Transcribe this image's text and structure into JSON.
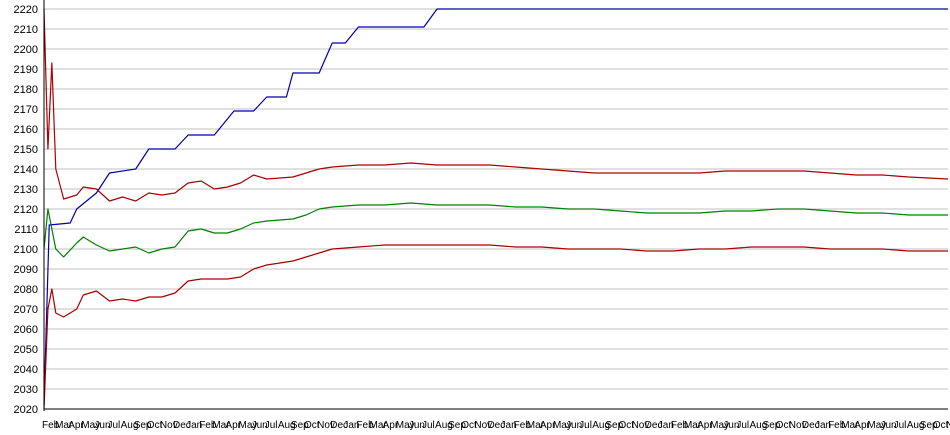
{
  "chart_data": {
    "type": "line",
    "title": "",
    "xlabel": "",
    "ylabel": "",
    "ylim": [
      2020,
      2220
    ],
    "y_ticks": [
      2020,
      2030,
      2040,
      2050,
      2060,
      2070,
      2080,
      2090,
      2100,
      2110,
      2120,
      2130,
      2140,
      2150,
      2160,
      2170,
      2180,
      2190,
      2200,
      2210,
      2220
    ],
    "x_tick_labels": [
      "Feb",
      "Mar",
      "Apr",
      "May",
      "Jun",
      "Jul",
      "Aug",
      "Sep",
      "Oct",
      "Nov",
      "Dec",
      "Jan",
      "Feb",
      "Mar",
      "Apr",
      "May",
      "Jun",
      "Jul",
      "Aug",
      "Sep",
      "Oct",
      "Nov",
      "Dec",
      "Jan",
      "Feb",
      "Mar",
      "Apr",
      "May",
      "Jun",
      "Jul",
      "Aug",
      "Sep",
      "Oct",
      "Nov",
      "Dec",
      "Jan",
      "Feb",
      "Mar",
      "Apr",
      "May",
      "Jun",
      "Jul",
      "Aug",
      "Sep",
      "Oct",
      "Nov",
      "Dec",
      "Jan",
      "Feb",
      "Mar",
      "Apr",
      "May",
      "Jun",
      "Jul",
      "Aug",
      "Sep",
      "Oct",
      "Nov",
      "Dec",
      "Jan",
      "Feb",
      "Mar",
      "Apr",
      "May",
      "Jun",
      "Jul",
      "Aug",
      "Sep",
      "Oct",
      "Nov"
    ],
    "x_range_months": [
      0,
      69
    ],
    "grid": true,
    "legend": "none",
    "series": [
      {
        "color": "#0000aa",
        "points": [
          [
            0,
            2022
          ],
          [
            0.4,
            2112
          ],
          [
            2,
            2113
          ],
          [
            2.5,
            2120
          ],
          [
            4,
            2128
          ],
          [
            5,
            2138
          ],
          [
            7,
            2140
          ],
          [
            8,
            2150
          ],
          [
            10,
            2150
          ],
          [
            11,
            2157
          ],
          [
            13,
            2157
          ],
          [
            14.5,
            2169
          ],
          [
            16,
            2169
          ],
          [
            17,
            2176
          ],
          [
            18.5,
            2176
          ],
          [
            19,
            2188
          ],
          [
            21,
            2188
          ],
          [
            22,
            2203
          ],
          [
            23,
            2203
          ],
          [
            24,
            2211
          ],
          [
            29,
            2211
          ],
          [
            30,
            2220
          ],
          [
            69,
            2220
          ]
        ]
      },
      {
        "color": "#aa0000",
        "points": [
          [
            0,
            2220
          ],
          [
            0.3,
            2150
          ],
          [
            0.6,
            2193
          ],
          [
            0.9,
            2140
          ],
          [
            1.5,
            2125
          ],
          [
            2.5,
            2127
          ],
          [
            3,
            2131
          ],
          [
            4,
            2130
          ],
          [
            5,
            2124
          ],
          [
            6,
            2126
          ],
          [
            7,
            2124
          ],
          [
            8,
            2128
          ],
          [
            9,
            2127
          ],
          [
            10,
            2128
          ],
          [
            11,
            2133
          ],
          [
            12,
            2134
          ],
          [
            13,
            2130
          ],
          [
            14,
            2131
          ],
          [
            15,
            2133
          ],
          [
            16,
            2137
          ],
          [
            17,
            2135
          ],
          [
            19,
            2136
          ],
          [
            20,
            2138
          ],
          [
            21,
            2140
          ],
          [
            22,
            2141
          ],
          [
            24,
            2142
          ],
          [
            26,
            2142
          ],
          [
            28,
            2143
          ],
          [
            30,
            2142
          ],
          [
            32,
            2142
          ],
          [
            34,
            2142
          ],
          [
            36,
            2141
          ],
          [
            38,
            2140
          ],
          [
            40,
            2139
          ],
          [
            42,
            2138
          ],
          [
            44,
            2138
          ],
          [
            46,
            2138
          ],
          [
            48,
            2138
          ],
          [
            50,
            2138
          ],
          [
            52,
            2139
          ],
          [
            54,
            2139
          ],
          [
            56,
            2139
          ],
          [
            58,
            2139
          ],
          [
            60,
            2138
          ],
          [
            62,
            2137
          ],
          [
            64,
            2137
          ],
          [
            66,
            2136
          ],
          [
            69,
            2135
          ]
        ]
      },
      {
        "color": "#008000",
        "points": [
          [
            0,
            2100
          ],
          [
            0.3,
            2120
          ],
          [
            0.6,
            2110
          ],
          [
            0.9,
            2100
          ],
          [
            1.5,
            2096
          ],
          [
            2.5,
            2103
          ],
          [
            3,
            2106
          ],
          [
            4,
            2102
          ],
          [
            5,
            2099
          ],
          [
            6,
            2100
          ],
          [
            7,
            2101
          ],
          [
            8,
            2098
          ],
          [
            9,
            2100
          ],
          [
            10,
            2101
          ],
          [
            11,
            2109
          ],
          [
            12,
            2110
          ],
          [
            13,
            2108
          ],
          [
            14,
            2108
          ],
          [
            15,
            2110
          ],
          [
            16,
            2113
          ],
          [
            17,
            2114
          ],
          [
            19,
            2115
          ],
          [
            20,
            2117
          ],
          [
            21,
            2120
          ],
          [
            22,
            2121
          ],
          [
            24,
            2122
          ],
          [
            26,
            2122
          ],
          [
            28,
            2123
          ],
          [
            30,
            2122
          ],
          [
            32,
            2122
          ],
          [
            34,
            2122
          ],
          [
            36,
            2121
          ],
          [
            38,
            2121
          ],
          [
            40,
            2120
          ],
          [
            42,
            2120
          ],
          [
            44,
            2119
          ],
          [
            46,
            2118
          ],
          [
            48,
            2118
          ],
          [
            50,
            2118
          ],
          [
            52,
            2119
          ],
          [
            54,
            2119
          ],
          [
            56,
            2120
          ],
          [
            58,
            2120
          ],
          [
            60,
            2119
          ],
          [
            62,
            2118
          ],
          [
            64,
            2118
          ],
          [
            66,
            2117
          ],
          [
            69,
            2117
          ]
        ]
      },
      {
        "color": "#aa0000",
        "points": [
          [
            0,
            2020
          ],
          [
            0.3,
            2070
          ],
          [
            0.6,
            2080
          ],
          [
            0.9,
            2068
          ],
          [
            1.5,
            2066
          ],
          [
            2.5,
            2070
          ],
          [
            3,
            2077
          ],
          [
            4,
            2079
          ],
          [
            5,
            2074
          ],
          [
            6,
            2075
          ],
          [
            7,
            2074
          ],
          [
            8,
            2076
          ],
          [
            9,
            2076
          ],
          [
            10,
            2078
          ],
          [
            11,
            2084
          ],
          [
            12,
            2085
          ],
          [
            13,
            2085
          ],
          [
            14,
            2085
          ],
          [
            15,
            2086
          ],
          [
            16,
            2090
          ],
          [
            17,
            2092
          ],
          [
            19,
            2094
          ],
          [
            20,
            2096
          ],
          [
            21,
            2098
          ],
          [
            22,
            2100
          ],
          [
            24,
            2101
          ],
          [
            26,
            2102
          ],
          [
            28,
            2102
          ],
          [
            30,
            2102
          ],
          [
            32,
            2102
          ],
          [
            34,
            2102
          ],
          [
            36,
            2101
          ],
          [
            38,
            2101
          ],
          [
            40,
            2100
          ],
          [
            42,
            2100
          ],
          [
            44,
            2100
          ],
          [
            46,
            2099
          ],
          [
            48,
            2099
          ],
          [
            50,
            2100
          ],
          [
            52,
            2100
          ],
          [
            54,
            2101
          ],
          [
            56,
            2101
          ],
          [
            58,
            2101
          ],
          [
            60,
            2100
          ],
          [
            62,
            2100
          ],
          [
            64,
            2100
          ],
          [
            66,
            2099
          ],
          [
            69,
            2099
          ]
        ]
      }
    ]
  }
}
